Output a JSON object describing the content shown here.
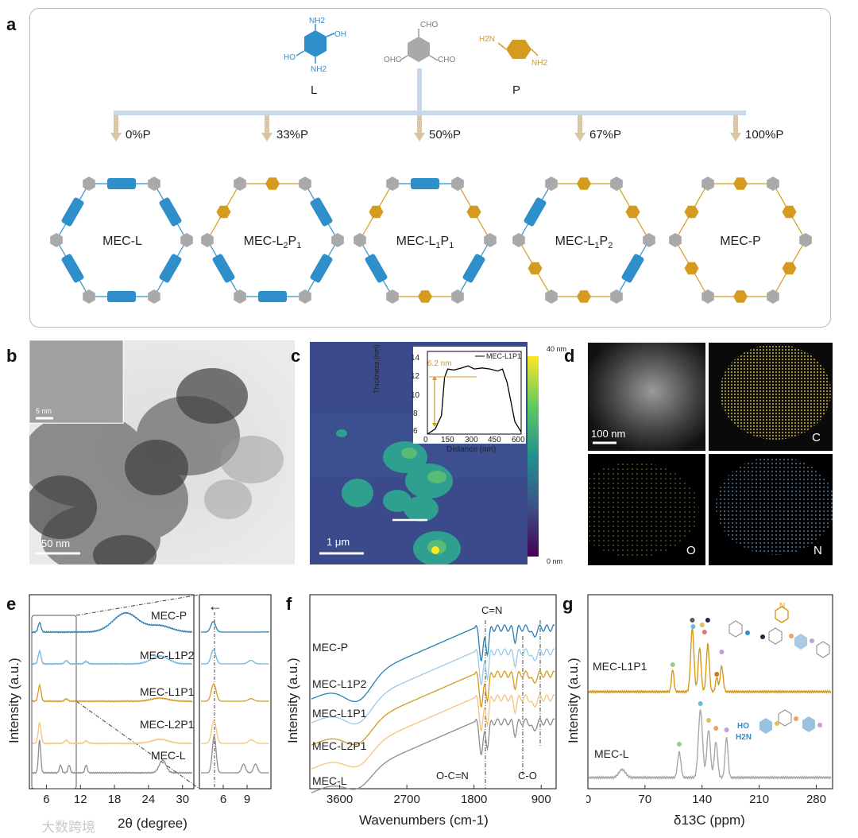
{
  "panel_labels": {
    "a": "a",
    "b": "b",
    "c": "c",
    "d": "d",
    "e": "e",
    "f": "f",
    "g": "g"
  },
  "colors": {
    "L": "#2f8fcb",
    "P": "#d49b1f",
    "node": "#a9a9a9",
    "arrow": "#d8c7a2",
    "branch": "#c8d8ea"
  },
  "panel_a": {
    "monomer_L": {
      "label": "L",
      "g1": "NH2",
      "g2": "OH",
      "g3": "HO",
      "g4": "NH2"
    },
    "monomer_center": {
      "g1": "CHO",
      "g2": "OHC",
      "g3": "CHO"
    },
    "monomer_P": {
      "label": "P",
      "g1": "H2N",
      "g2": "NH2"
    },
    "ratios": [
      "0%P",
      "33%P",
      "50%P",
      "67%P",
      "100%P"
    ],
    "frameworks": [
      {
        "name": "MEC-L",
        "base": "MEC-L",
        "sub1": "",
        "mid": "",
        "sub2": ""
      },
      {
        "name": "MEC-L2P1",
        "base": "MEC-L",
        "sub1": "2",
        "mid": "P",
        "sub2": "1"
      },
      {
        "name": "MEC-L1P1",
        "base": "MEC-L",
        "sub1": "1",
        "mid": "P",
        "sub2": "1"
      },
      {
        "name": "MEC-L1P2",
        "base": "MEC-L",
        "sub1": "1",
        "mid": "P",
        "sub2": "2"
      },
      {
        "name": "MEC-P",
        "base": "MEC-P",
        "sub1": "",
        "mid": "",
        "sub2": ""
      }
    ]
  },
  "panel_b": {
    "inset_scale": "5 nm",
    "scale": "50 nm"
  },
  "panel_c": {
    "scale": "1 μm",
    "colorbar_max": "40 nm",
    "colorbar_min": "0 nm",
    "inset": {
      "legend": "MEC-L1P1",
      "annotation": "6.2 nm",
      "xlabel": "Distance (nm)",
      "ylabel": "Thickness (nm)",
      "xticks": [
        "0",
        "150",
        "300",
        "450",
        "600"
      ],
      "yticks": [
        "6",
        "8",
        "10",
        "12",
        "14"
      ]
    }
  },
  "panel_d": {
    "scale": "100 nm",
    "maps": [
      "C",
      "O",
      "N"
    ]
  },
  "panel_e": {
    "series": [
      "MEC-P",
      "MEC-L1P2",
      "MEC-L1P1",
      "MEC-L2P1",
      "MEC-L"
    ],
    "ylabel": "Intensity (a.u.)",
    "xlabel": "2θ (degree)",
    "xticks": [
      "6",
      "12",
      "18",
      "24",
      "30"
    ],
    "xticks_zoom": [
      "6",
      "9"
    ],
    "arrow": "←"
  },
  "panel_f": {
    "series": [
      "MEC-P",
      "MEC-L1P2",
      "MEC-L1P1",
      "MEC-L2P1",
      "MEC-L"
    ],
    "ylabel": "Intensity (a.u.)",
    "xlabel": "Wavenumbers (cm-1)",
    "xticks": [
      "3600",
      "2700",
      "1800",
      "900"
    ],
    "annotations": [
      "C=N",
      "O-C=N",
      "C-O"
    ]
  },
  "panel_g": {
    "series": [
      "MEC-L1P1",
      "MEC-L"
    ],
    "ylabel": "Intensity (a.u.)",
    "xlabel": "δ13C (ppm)",
    "xticks": [
      "0",
      "70",
      "140",
      "210",
      "280"
    ],
    "struct_groups": [
      "HO",
      "H2N",
      "N"
    ]
  },
  "watermark": "大数跨境"
}
